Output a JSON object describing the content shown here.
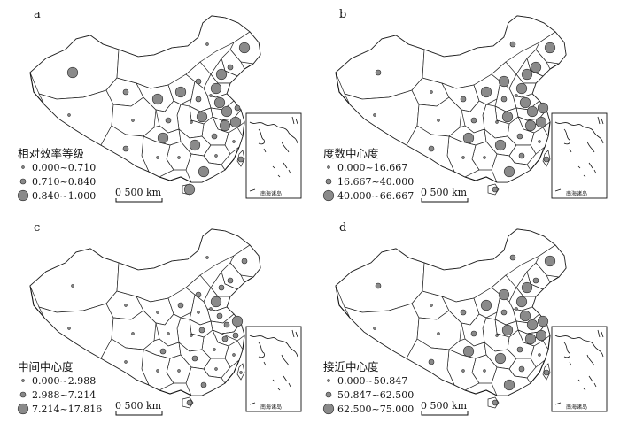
{
  "scale_bar": {
    "label": "0    500 km"
  },
  "inset": {
    "label": "南海诸岛"
  },
  "symbol_color": "#8a8a8a",
  "symbol_stroke": "#2a2a2a",
  "panels": [
    {
      "id": "a",
      "letter": "a",
      "legend_title": "相对效率等级",
      "classes": [
        {
          "range": "0.000~0.710",
          "level": 1
        },
        {
          "range": "0.710~0.840",
          "level": 2
        },
        {
          "range": "0.840~1.000",
          "level": 3
        }
      ],
      "province_levels": [
        3,
        1,
        2,
        1,
        1,
        3,
        2,
        3,
        3,
        3,
        2,
        3,
        3,
        2,
        3,
        3,
        3,
        3,
        2,
        1,
        1,
        2,
        3,
        3,
        1,
        3,
        1,
        1,
        2,
        3,
        2,
        1,
        2
      ]
    },
    {
      "id": "b",
      "letter": "b",
      "legend_title": "度数中心度",
      "classes": [
        {
          "range": "0.000~16.667",
          "level": 1
        },
        {
          "range": "16.667~40.000",
          "level": 2
        },
        {
          "range": "40.000~66.667",
          "level": 3
        }
      ],
      "province_levels": [
        2,
        1,
        1,
        1,
        2,
        3,
        3,
        3,
        2,
        3,
        3,
        3,
        3,
        2,
        3,
        3,
        3,
        3,
        2,
        1,
        1,
        2,
        3,
        3,
        2,
        3,
        1,
        1,
        2,
        2,
        2,
        1,
        3
      ]
    },
    {
      "id": "c",
      "letter": "c",
      "legend_title": "中间中心度",
      "classes": [
        {
          "range": "0.000~2.988",
          "level": 1
        },
        {
          "range": "2.988~7.214",
          "level": 2
        },
        {
          "range": "7.214~17.816",
          "level": 3
        }
      ],
      "province_levels": [
        1,
        1,
        1,
        1,
        1,
        2,
        2,
        2,
        1,
        2,
        2,
        3,
        2,
        1,
        2,
        2,
        2,
        2,
        1,
        1,
        1,
        1,
        2,
        2,
        1,
        2,
        1,
        1,
        1,
        2,
        1,
        1,
        3
      ]
    },
    {
      "id": "d",
      "letter": "d",
      "legend_title": "接近中心度",
      "classes": [
        {
          "range": "0.000~50.847",
          "level": 1
        },
        {
          "range": "50.847~62.500",
          "level": 2
        },
        {
          "range": "62.500~75.000",
          "level": 3
        }
      ],
      "province_levels": [
        2,
        1,
        1,
        1,
        2,
        3,
        2,
        3,
        2,
        3,
        3,
        3,
        3,
        2,
        3,
        3,
        3,
        3,
        2,
        1,
        1,
        2,
        3,
        3,
        2,
        3,
        1,
        1,
        2,
        2,
        2,
        1,
        3
      ]
    }
  ]
}
